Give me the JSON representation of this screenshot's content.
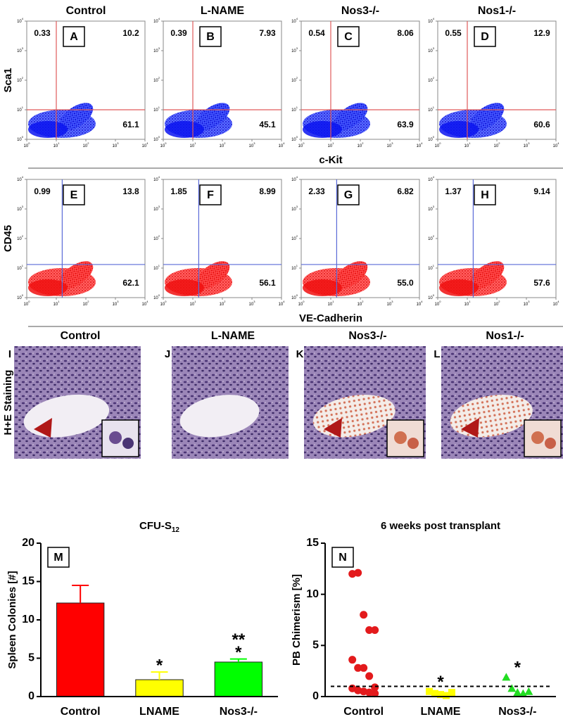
{
  "flow_rows": [
    {
      "y_label": "Sca1",
      "x_label": "c-Kit",
      "color": "#0a14f0",
      "gate_color": "#e05a5a",
      "panels": [
        {
          "title": "Control",
          "letter": "A",
          "upper_left": "0.33",
          "upper_right": "10.2",
          "lower_right": "61.1"
        },
        {
          "title": "L-NAME",
          "letter": "B",
          "upper_left": "0.39",
          "upper_right": "7.93",
          "lower_right": "45.1"
        },
        {
          "title": "Nos3-/-",
          "letter": "C",
          "upper_left": "0.54",
          "upper_right": "8.06",
          "lower_right": "63.9"
        },
        {
          "title": "Nos1-/-",
          "letter": "D",
          "upper_left": "0.55",
          "upper_right": "12.9",
          "lower_right": "60.6"
        }
      ]
    },
    {
      "y_label": "CD45",
      "x_label": "VE-Cadherin",
      "color": "#f01010",
      "gate_color": "#5a6ad8",
      "panels": [
        {
          "letter": "E",
          "upper_left": "0.99",
          "upper_right": "13.8",
          "lower_right": "62.1"
        },
        {
          "letter": "F",
          "upper_left": "1.85",
          "upper_right": "8.99",
          "lower_right": "56.1"
        },
        {
          "letter": "G",
          "upper_left": "2.33",
          "upper_right": "6.82",
          "lower_right": "55.0"
        },
        {
          "letter": "H",
          "upper_left": "1.37",
          "upper_right": "9.14",
          "lower_right": "57.6"
        }
      ]
    }
  ],
  "flow_ticks": [
    {
      "base": "10",
      "exp": "0"
    },
    {
      "base": "10",
      "exp": "1"
    },
    {
      "base": "10",
      "exp": "2"
    },
    {
      "base": "10",
      "exp": "3"
    },
    {
      "base": "10",
      "exp": "4"
    }
  ],
  "histology": {
    "row_label": "H+E Staining",
    "panels": [
      {
        "title": "Control",
        "letter": "I"
      },
      {
        "title": "L-NAME",
        "letter": "J"
      },
      {
        "title": "Nos3-/-",
        "letter": "K"
      },
      {
        "title": "Nos1-/-",
        "letter": "L"
      }
    ]
  },
  "chart_data": [
    {
      "type": "bar",
      "panel": "M",
      "title": "CFU-S",
      "title_sub": "12",
      "y_label": "Spleen  Colonies [#]",
      "categories": [
        "Control",
        "LNAME",
        "Nos3-/-"
      ],
      "values": [
        12.2,
        2.2,
        4.5
      ],
      "errors": [
        2.3,
        1.0,
        0.4
      ],
      "colors": [
        "#ff0000",
        "#ffff00",
        "#00ff00"
      ],
      "ylim": [
        0,
        20
      ],
      "yticks": [
        0,
        5,
        10,
        15,
        20
      ],
      "annotations": [
        {
          "category": "LNAME",
          "text": [
            "*"
          ]
        },
        {
          "category": "Nos3-/-",
          "text": [
            "**",
            "*"
          ]
        }
      ]
    },
    {
      "type": "scatter",
      "panel": "N",
      "title": "6 weeks post transplant",
      "y_label": "PB Chimerism [%]",
      "series": [
        {
          "name": "Control",
          "color": "#e31a1c",
          "marker": "circle",
          "values": [
            12.0,
            12.1,
            8.0,
            6.5,
            6.5,
            3.6,
            2.8,
            2.8,
            2.0,
            0.9,
            0.8,
            0.6,
            0.5,
            0.4,
            0.3
          ]
        },
        {
          "name": "LNAME",
          "color": "#ffff00",
          "marker": "square",
          "values": [
            0.5,
            0.3,
            0.2,
            0.1,
            0.4
          ]
        },
        {
          "name": "Nos3-/-",
          "color": "#22dd22",
          "marker": "triangle",
          "values": [
            1.9,
            0.8,
            0.4,
            0.3,
            0.5
          ]
        }
      ],
      "ylim": [
        0,
        15
      ],
      "yticks": [
        0,
        5,
        10,
        15
      ],
      "reference_line": 1,
      "annotations": [
        {
          "category": "LNAME",
          "text": [
            "*"
          ]
        },
        {
          "category": "Nos3-/-",
          "text": [
            "*"
          ]
        }
      ]
    }
  ]
}
